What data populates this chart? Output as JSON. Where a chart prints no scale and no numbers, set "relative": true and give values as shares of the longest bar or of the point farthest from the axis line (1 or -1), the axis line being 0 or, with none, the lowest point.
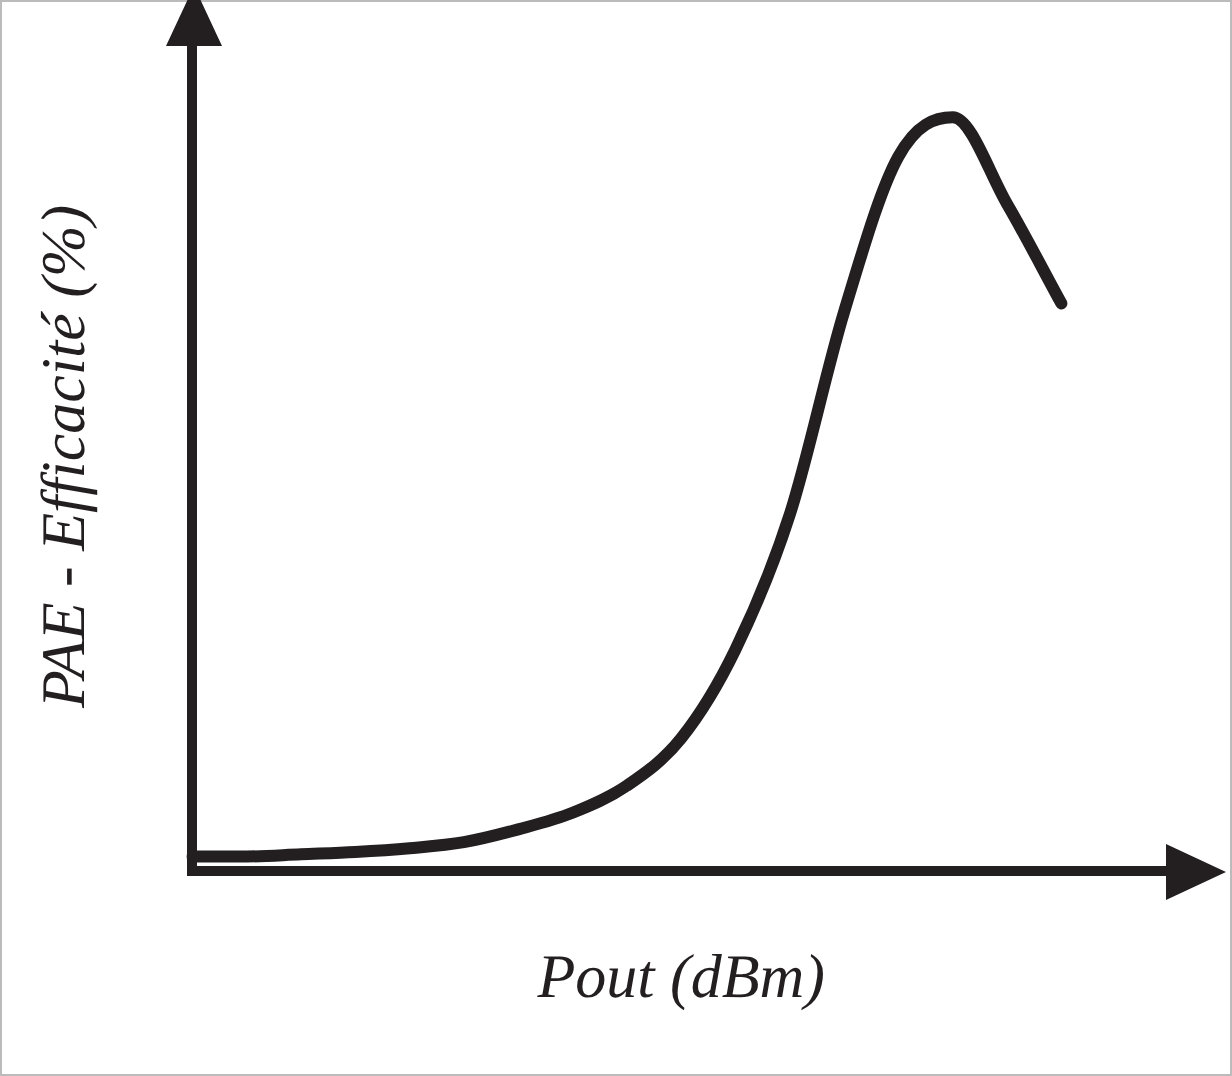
{
  "chart_data": {
    "type": "line",
    "xlabel": "Pout (dBm)",
    "ylabel": "PAE - Efficacité (%)",
    "relative": true,
    "marker": "none",
    "legend": false,
    "grid": false,
    "categories": [
      null,
      null,
      null,
      null,
      null,
      null,
      null,
      null,
      null,
      null,
      null,
      null,
      null,
      null,
      null,
      null,
      null,
      null,
      null
    ],
    "series": [
      {
        "color": "#231f20",
        "values": [
          0.019,
          0.019,
          0.022,
          0.025,
          0.03,
          0.038,
          0.055,
          0.077,
          0.113,
          0.176,
          0.294,
          0.473,
          0.742,
          0.948,
          1,
          0.885,
          0.753,
          null,
          null
        ]
      }
    ]
  }
}
